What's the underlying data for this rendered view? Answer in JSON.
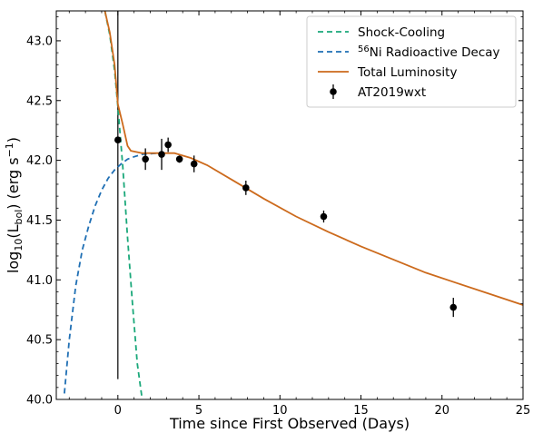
{
  "chart_data": {
    "type": "line",
    "xlabel": "Time since First Observed (Days)",
    "ylabel_parts": {
      "pre": "log",
      "sub1": "10",
      "mid": "(L",
      "sub2": "bol",
      "post": ") (erg s",
      "sup": "−1",
      "end": ")"
    },
    "xlim": [
      -3.8,
      25
    ],
    "ylim": [
      40.0,
      43.25
    ],
    "xticks": [
      0,
      5,
      10,
      15,
      20,
      25
    ],
    "xtick_labels": [
      "0",
      "5",
      "10",
      "15",
      "20",
      "25"
    ],
    "yticks": [
      40.0,
      40.5,
      41.0,
      41.5,
      42.0,
      42.5,
      43.0
    ],
    "ytick_labels": [
      "40.0",
      "40.5",
      "41.0",
      "41.5",
      "42.0",
      "42.5",
      "43.0"
    ],
    "legend_position": "top-right",
    "legend": [
      {
        "key": "shock",
        "label": "Shock-Cooling"
      },
      {
        "key": "ni",
        "label_sup": "56",
        "label": "Ni Radioactive Decay"
      },
      {
        "key": "total",
        "label": "Total Luminosity"
      },
      {
        "key": "obs",
        "label": "AT2019wxt"
      }
    ],
    "vline": {
      "x": 0,
      "y": [
        40.17,
        43.25
      ]
    },
    "series": [
      {
        "key": "shock",
        "name": "Shock-Cooling",
        "color": "#1aa87a",
        "dash": "6,4",
        "x": [
          -0.8,
          -0.5,
          -0.2,
          0.0,
          0.3,
          0.6,
          0.9,
          1.2,
          1.5
        ],
        "y": [
          43.25,
          43.05,
          42.75,
          42.45,
          41.95,
          41.35,
          40.8,
          40.3,
          40.0
        ]
      },
      {
        "key": "ni",
        "name": "56Ni Radioactive Decay",
        "color": "#1f6fb4",
        "dash": "6,4",
        "x": [
          -3.3,
          -3.0,
          -2.6,
          -2.2,
          -1.8,
          -1.4,
          -1.0,
          -0.6,
          -0.2,
          0.2,
          0.6,
          1.0,
          1.5,
          2.0,
          2.5
        ],
        "y": [
          40.05,
          40.5,
          40.95,
          41.25,
          41.45,
          41.62,
          41.75,
          41.85,
          41.92,
          41.97,
          42.01,
          42.03,
          42.05,
          42.055,
          42.06
        ]
      },
      {
        "key": "total",
        "name": "Total Luminosity",
        "color": "#cc6a1c",
        "dash": "",
        "x": [
          -0.8,
          -0.5,
          -0.2,
          0.0,
          0.3,
          0.6,
          0.8,
          1.5,
          2.5,
          3.5,
          4.5,
          5.5,
          7.0,
          9.0,
          11.0,
          13.0,
          15.0,
          17.0,
          19.0,
          21.0,
          23.0,
          25.0
        ],
        "y": [
          43.25,
          43.07,
          42.8,
          42.47,
          42.3,
          42.12,
          42.08,
          42.06,
          42.06,
          42.06,
          42.02,
          41.96,
          41.84,
          41.68,
          41.53,
          41.4,
          41.28,
          41.17,
          41.06,
          40.97,
          40.88,
          40.79
        ]
      }
    ],
    "observations": {
      "name": "AT2019wxt",
      "color": "#000000",
      "x": [
        0.0,
        1.7,
        2.7,
        3.1,
        3.8,
        4.7,
        7.9,
        12.7,
        20.7
      ],
      "y": [
        42.17,
        42.01,
        42.05,
        42.13,
        42.01,
        41.97,
        41.77,
        41.53,
        40.77
      ],
      "yerr": [
        0.0,
        0.09,
        0.13,
        0.06,
        0.03,
        0.07,
        0.06,
        0.05,
        0.08
      ]
    }
  }
}
